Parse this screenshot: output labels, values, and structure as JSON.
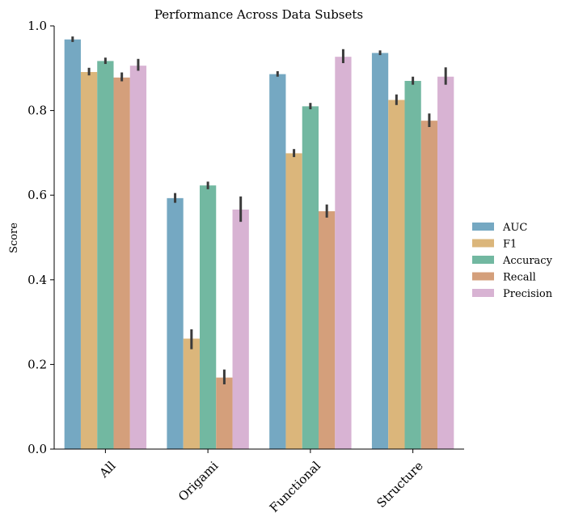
{
  "chart_data": {
    "type": "bar",
    "title": "Performance Across Data Subsets",
    "xlabel": "",
    "ylabel": "Score",
    "ylim": [
      0,
      1.0
    ],
    "yticks": [
      "0.0",
      "0.2",
      "0.4",
      "0.6",
      "0.8",
      "1.0"
    ],
    "categories": [
      "All",
      "Origami",
      "Functional",
      "Structure"
    ],
    "grid": false,
    "legend_position": "right",
    "series": [
      {
        "name": "AUC",
        "color": "#75a8c2",
        "values": [
          0.968,
          0.593,
          0.886,
          0.936
        ],
        "err_low": [
          0.962,
          0.582,
          0.88,
          0.931
        ],
        "err_high": [
          0.975,
          0.605,
          0.893,
          0.942
        ]
      },
      {
        "name": "F1",
        "color": "#dbb67b",
        "values": [
          0.891,
          0.261,
          0.699,
          0.825
        ],
        "err_low": [
          0.883,
          0.236,
          0.69,
          0.813
        ],
        "err_high": [
          0.901,
          0.283,
          0.709,
          0.838
        ]
      },
      {
        "name": "Accuracy",
        "color": "#72b8a1",
        "values": [
          0.917,
          0.623,
          0.81,
          0.87
        ],
        "err_low": [
          0.91,
          0.614,
          0.803,
          0.861
        ],
        "err_high": [
          0.925,
          0.632,
          0.818,
          0.88
        ]
      },
      {
        "name": "Recall",
        "color": "#d49f7b",
        "values": [
          0.878,
          0.169,
          0.562,
          0.776
        ],
        "err_low": [
          0.869,
          0.153,
          0.547,
          0.761
        ],
        "err_high": [
          0.89,
          0.188,
          0.578,
          0.793
        ]
      },
      {
        "name": "Precision",
        "color": "#d8b3d3",
        "values": [
          0.906,
          0.566,
          0.927,
          0.88
        ],
        "err_low": [
          0.894,
          0.537,
          0.912,
          0.861
        ],
        "err_high": [
          0.922,
          0.597,
          0.945,
          0.902
        ]
      }
    ]
  }
}
